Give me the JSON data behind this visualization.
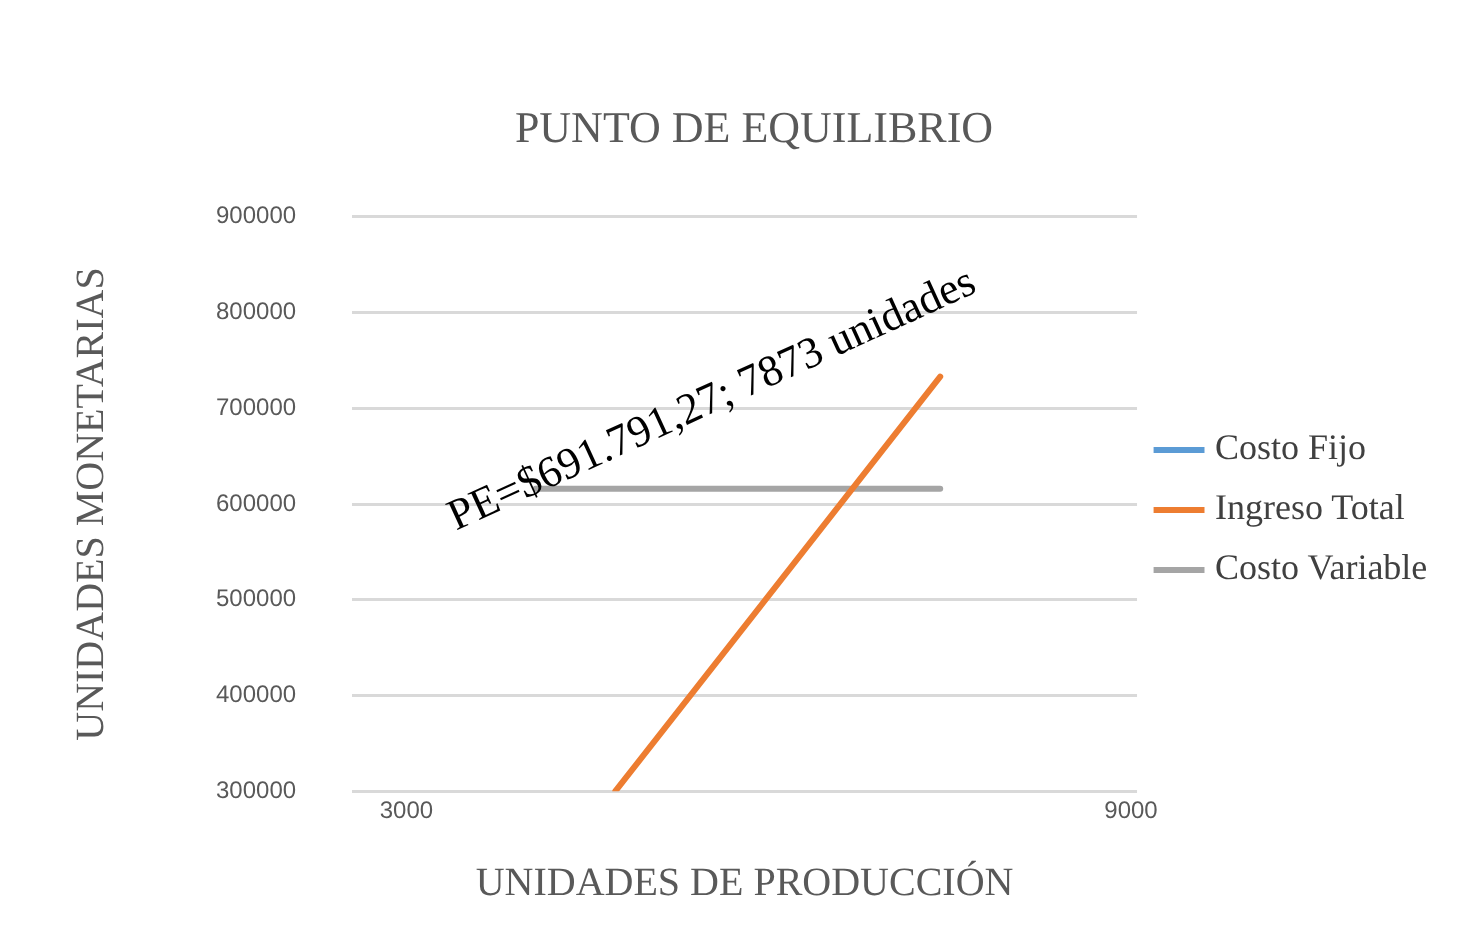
{
  "chart_data": {
    "type": "line",
    "title": "PUNTO DE EQUILIBRIO",
    "xlabel": "UNIDADES DE PRODUCCIÓN",
    "ylabel": "UNIDADES MONETARIAS",
    "xlim": [
      2550,
      9050
    ],
    "xticks": [
      3000,
      9000
    ],
    "ylim": [
      300000,
      900000
    ],
    "yticks": [
      300000,
      400000,
      500000,
      600000,
      700000,
      800000,
      900000
    ],
    "series": [
      {
        "name": "Costo Fijo",
        "color": "#5b9bd5"
      },
      {
        "name": "Ingreso Total",
        "color": "#ed7d31",
        "x": [
          4730,
          7420
        ],
        "values": [
          300000,
          733000
        ]
      },
      {
        "name": "Costo Variable",
        "color": "#a5a5a5",
        "x": [
          4070,
          7420
        ],
        "values": [
          616000,
          616000
        ]
      }
    ],
    "annotations": [
      "PE=$691.791,27; 7873 unidades"
    ],
    "grid": "y",
    "legend": "right",
    "marker": "none",
    "line_style": "solid"
  }
}
